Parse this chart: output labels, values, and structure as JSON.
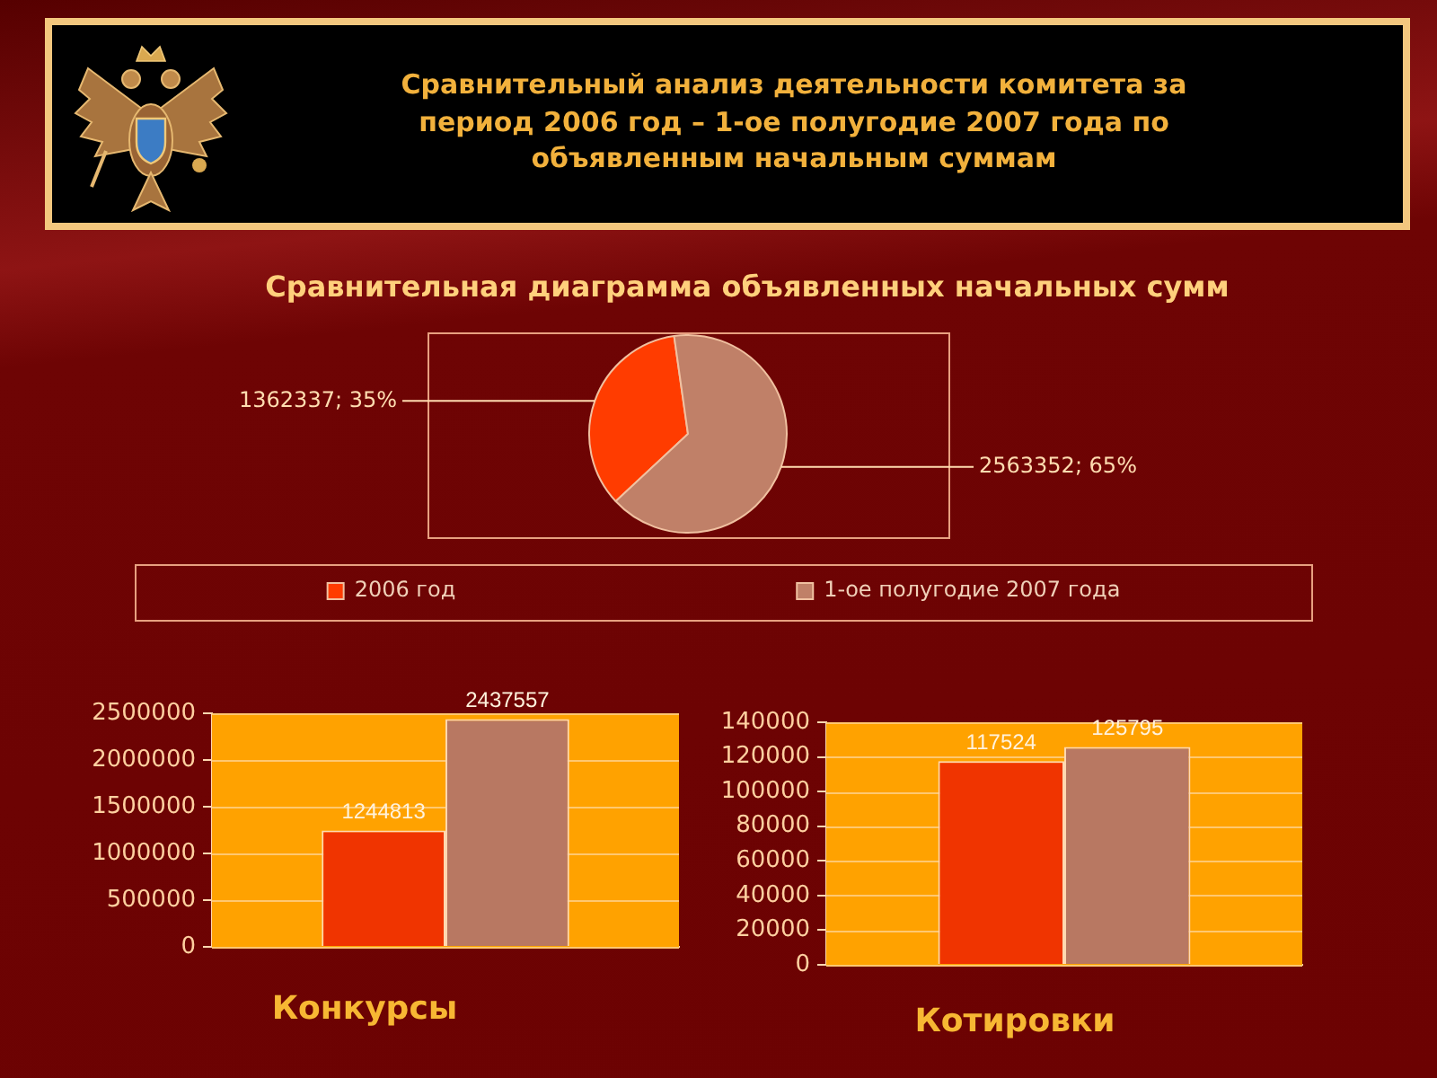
{
  "chart_data": [
    {
      "type": "pie",
      "title": "Сравнительный анализ деятельности комитета за период 2006 год – 1-ое полугодие 2007 года по объявленным начальным суммам",
      "subtitle": "Сравнительная диаграмма объявленных начальных сумм",
      "categories": [
        "2006 год",
        "1-ое полугодие 2007 года"
      ],
      "values": [
        1362337,
        2563352
      ],
      "colors": [
        "#ff3c00",
        "#c08068"
      ],
      "value_labels": [
        "1362337; 35%",
        "2563352; 65%"
      ],
      "legend": "bottom"
    },
    {
      "type": "bar",
      "xlabel": "Конкурсы",
      "categories": [
        null
      ],
      "series": [
        {
          "color": "#f03400",
          "values": [
            1244813
          ]
        },
        {
          "color": "#b87862",
          "values": [
            2437557
          ]
        }
      ],
      "ylim": [
        0,
        2500000
      ],
      "yticks": [
        0,
        500000,
        1000000,
        1500000,
        2000000,
        2500000
      ],
      "grid": "y",
      "data_labels": true
    },
    {
      "type": "bar",
      "xlabel": "Котировки",
      "categories": [
        null
      ],
      "series": [
        {
          "color": "#f03400",
          "values": [
            117524
          ]
        },
        {
          "color": "#b87862",
          "values": [
            125795
          ]
        }
      ],
      "ylim": [
        0,
        140000
      ],
      "yticks": [
        0,
        20000,
        40000,
        60000,
        80000,
        100000,
        120000,
        140000
      ],
      "grid": "y",
      "data_labels": true
    }
  ]
}
